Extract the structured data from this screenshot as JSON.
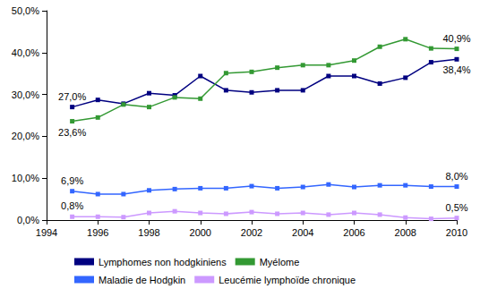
{
  "chart_data": {
    "type": "line",
    "x": [
      1995,
      1996,
      1997,
      1998,
      1999,
      2000,
      2001,
      2002,
      2003,
      2004,
      2005,
      2006,
      2007,
      2008,
      2009,
      2010
    ],
    "series": [
      {
        "name": "Lymphomes non hodgkiniens",
        "color": "#000080",
        "values": [
          27.0,
          28.7,
          27.8,
          30.3,
          29.8,
          34.4,
          31.0,
          30.5,
          31.0,
          31.0,
          34.4,
          34.4,
          32.6,
          34.0,
          37.7,
          38.4
        ]
      },
      {
        "name": "Myélome",
        "color": "#339933",
        "values": [
          23.6,
          24.5,
          27.6,
          27.0,
          29.3,
          29.0,
          35.1,
          35.4,
          36.4,
          37.0,
          37.0,
          38.1,
          41.4,
          43.2,
          41.0,
          40.9
        ]
      },
      {
        "name": "Maladie de Hodgkin",
        "color": "#3366ff",
        "values": [
          6.9,
          6.2,
          6.2,
          7.1,
          7.4,
          7.6,
          7.6,
          8.1,
          7.6,
          7.9,
          8.5,
          7.9,
          8.3,
          8.3,
          8.0,
          8.0
        ]
      },
      {
        "name": "Leucémie lymphoïde chronique",
        "color": "#cc99ff",
        "values": [
          0.8,
          0.8,
          0.7,
          1.7,
          2.1,
          1.7,
          1.5,
          1.9,
          1.5,
          1.7,
          1.3,
          1.7,
          1.3,
          0.6,
          0.3,
          0.5
        ]
      }
    ],
    "annotations": [
      {
        "series": "Lymphomes non hodgkiniens",
        "x": 1995,
        "y": 27.0,
        "label": "27,0%"
      },
      {
        "series": "Myélome",
        "x": 1995,
        "y": 23.6,
        "label": "23,6%"
      },
      {
        "series": "Maladie de Hodgkin",
        "x": 1995,
        "y": 6.9,
        "label": "6,9%"
      },
      {
        "series": "Leucémie lymphoïde chronique",
        "x": 1995,
        "y": 0.8,
        "label": "0,8%"
      },
      {
        "series": "Myélome",
        "x": 2010,
        "y": 40.9,
        "label": "40,9%"
      },
      {
        "series": "Lymphomes non hodgkiniens",
        "x": 2010,
        "y": 38.4,
        "label": "38,4%"
      },
      {
        "series": "Maladie de Hodgkin",
        "x": 2010,
        "y": 8.0,
        "label": "8,0%"
      },
      {
        "series": "Leucémie lymphoïde chronique",
        "x": 2010,
        "y": 0.5,
        "label": "0,5%"
      }
    ],
    "xlim": [
      1994,
      2010
    ],
    "xticks": [
      1994,
      1996,
      1998,
      2000,
      2002,
      2004,
      2006,
      2008,
      2010
    ],
    "ylim": [
      0,
      50
    ],
    "yticks": [
      {
        "value": 0,
        "label": "0,0%"
      },
      {
        "value": 10,
        "label": "10,0%"
      },
      {
        "value": 20,
        "label": "20,0%"
      },
      {
        "value": 30,
        "label": "30,0%"
      },
      {
        "value": 40,
        "label": "40,0%"
      },
      {
        "value": 50,
        "label": "50,0%"
      }
    ],
    "grid": false,
    "legend": "bottom",
    "marker": "square",
    "line_style": "solid"
  }
}
